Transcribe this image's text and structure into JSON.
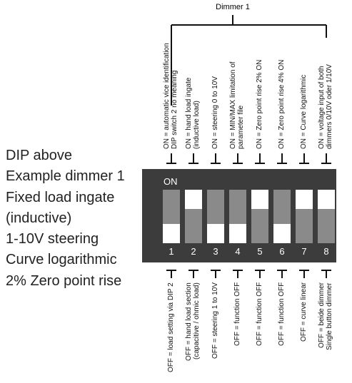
{
  "title": "Dimmer 1",
  "side_text": [
    "DIP above",
    "Example dimmer 1",
    "Fixed load ingate",
    "(inductive)",
    "1-10V steering",
    "Curve logarithmic",
    "2% Zero point rise"
  ],
  "dip": {
    "on_label": "ON",
    "switches": [
      {
        "number": "1",
        "state": "off"
      },
      {
        "number": "2",
        "state": "on"
      },
      {
        "number": "3",
        "state": "off"
      },
      {
        "number": "4",
        "state": "off"
      },
      {
        "number": "5",
        "state": "on"
      },
      {
        "number": "6",
        "state": "off"
      },
      {
        "number": "7",
        "state": "on"
      },
      {
        "number": "8",
        "state": "on"
      }
    ]
  },
  "on_labels": [
    [
      "ON = automatic vice identification",
      "DIP switch 2 no meaning"
    ],
    [
      "ON = hand load ingate",
      "(inductive load)"
    ],
    [
      "ON = steering 0 to 10V"
    ],
    [
      "ON = MIN/MAX limitation of",
      "parameter file"
    ],
    [
      "ON = Zero point rise 2% ON"
    ],
    [
      "ON = Zero point rise 4% ON"
    ],
    [
      "ON = Curve logarithmic"
    ],
    [
      "ON = voltage input of both",
      "dimmers 0/10V oder 1/10V"
    ]
  ],
  "off_labels": [
    [
      "OFF = load setting via DIP 2"
    ],
    [
      "OFF = hand load section",
      "(capacitive / ohmic load)"
    ],
    [
      "OFF = steering 1 to 10V"
    ],
    [
      "OFF = function OFF"
    ],
    [
      "OFF = function OFF"
    ],
    [
      "OFF = function OFF"
    ],
    [
      "OFF = curve linear"
    ],
    [
      "OFF = beide dimmer",
      "Single button dimmer"
    ]
  ]
}
